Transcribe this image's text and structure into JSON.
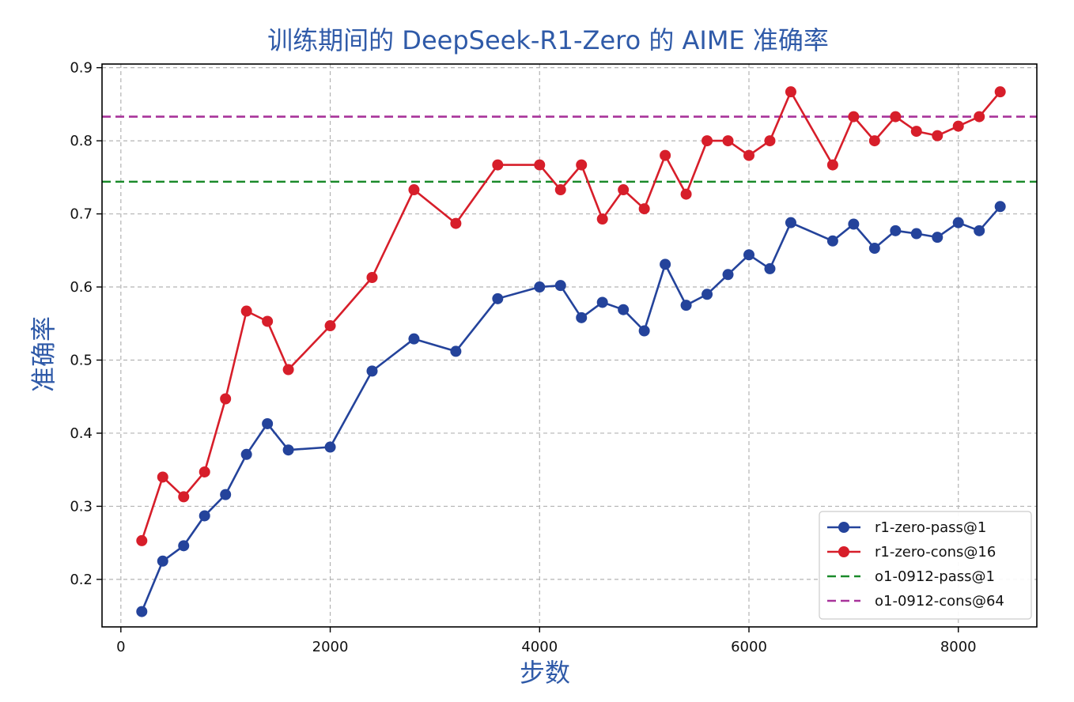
{
  "chart_data": {
    "type": "line",
    "title": "训练期间的 DeepSeek-R1-Zero 的 AIME 准确率",
    "xlabel": "步数",
    "ylabel": "准确率",
    "xlim": [
      -180,
      8750
    ],
    "ylim": [
      0.135,
      0.905
    ],
    "x_ticks": [
      0,
      2000,
      4000,
      6000,
      8000
    ],
    "y_ticks": [
      0.2,
      0.3,
      0.4,
      0.5,
      0.6,
      0.7,
      0.8,
      0.9
    ],
    "grid": true,
    "legend_position": "lower-right",
    "title_color": "#2f5aa8",
    "label_color": "#2f5aa8",
    "series": [
      {
        "name": "r1-zero-pass@1",
        "style": "line-marker",
        "color": "#24439b",
        "x": [
          200,
          400,
          600,
          800,
          1000,
          1200,
          1400,
          1600,
          2000,
          2400,
          2800,
          3200,
          3600,
          4000,
          4200,
          4400,
          4600,
          4800,
          5000,
          5200,
          5400,
          5600,
          5800,
          6000,
          6200,
          6400,
          6800,
          7000,
          7200,
          7400,
          7600,
          7800,
          8000,
          8200,
          8400
        ],
        "values": [
          0.156,
          0.225,
          0.246,
          0.287,
          0.316,
          0.371,
          0.413,
          0.377,
          0.381,
          0.485,
          0.529,
          0.512,
          0.584,
          0.6,
          0.602,
          0.558,
          0.579,
          0.569,
          0.54,
          0.631,
          0.575,
          0.59,
          0.617,
          0.644,
          0.625,
          0.688,
          0.663,
          0.686,
          0.653,
          0.677,
          0.673,
          0.668,
          0.688,
          0.677,
          0.71
        ]
      },
      {
        "name": "r1-zero-cons@16",
        "style": "line-marker",
        "color": "#d71e2a",
        "x": [
          200,
          400,
          600,
          800,
          1000,
          1200,
          1400,
          1600,
          2000,
          2400,
          2800,
          3200,
          3600,
          4000,
          4200,
          4400,
          4600,
          4800,
          5000,
          5200,
          5400,
          5600,
          5800,
          6000,
          6200,
          6400,
          6800,
          7000,
          7200,
          7400,
          7600,
          7800,
          8000,
          8200,
          8400
        ],
        "values": [
          0.253,
          0.34,
          0.313,
          0.347,
          0.447,
          0.567,
          0.553,
          0.487,
          0.547,
          0.613,
          0.733,
          0.687,
          0.767,
          0.767,
          0.733,
          0.767,
          0.693,
          0.733,
          0.707,
          0.78,
          0.727,
          0.8,
          0.8,
          0.78,
          0.8,
          0.867,
          0.767,
          0.833,
          0.8,
          0.833,
          0.813,
          0.807,
          0.82,
          0.833,
          0.867
        ]
      },
      {
        "name": "o1-0912-pass@1",
        "style": "dashed-hline",
        "color": "#1a8a2a",
        "value": 0.744
      },
      {
        "name": "o1-0912-cons@64",
        "style": "dashed-hline",
        "color": "#a8339a",
        "value": 0.833
      }
    ]
  }
}
